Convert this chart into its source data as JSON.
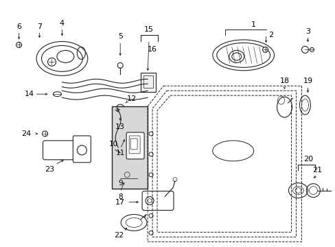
{
  "background_color": "#ffffff",
  "figure_width": 4.89,
  "figure_height": 3.6,
  "dpi": 100
}
